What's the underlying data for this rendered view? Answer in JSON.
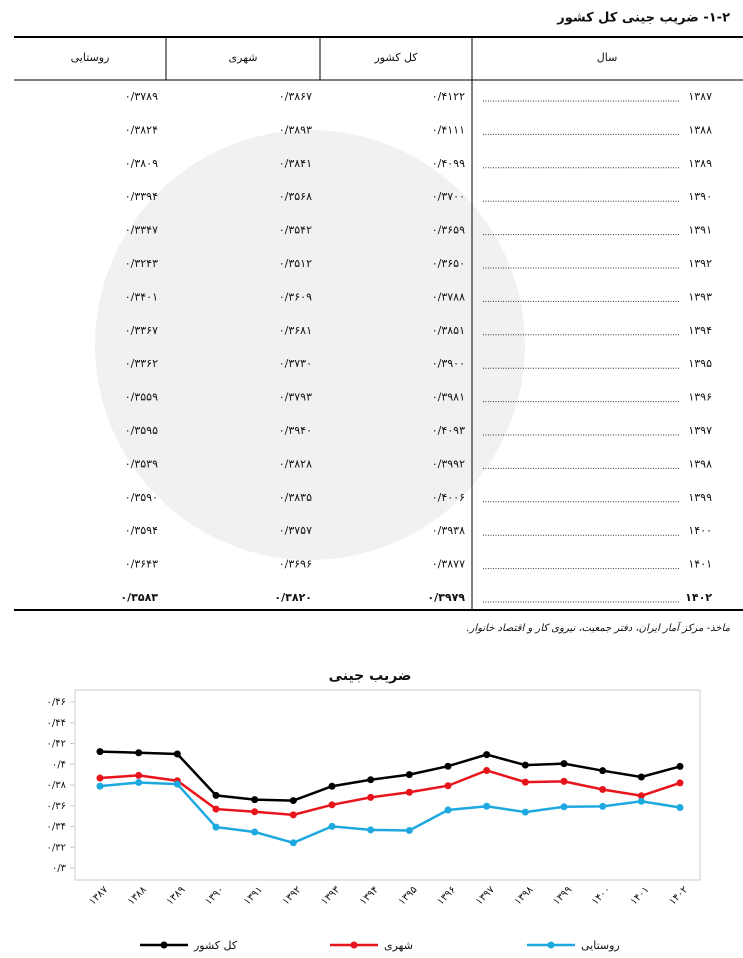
{
  "header": {
    "title": "۱-۲- ضریب جینی کل کشور"
  },
  "table": {
    "columns": [
      "سال",
      "کل کشور",
      "شهری",
      "روستایی"
    ],
    "rows": [
      [
        "۱۳۸۷",
        "۰/۴۱۲۲",
        "۰/۳۸۶۷",
        "۰/۳۷۸۹"
      ],
      [
        "۱۳۸۸",
        "۰/۴۱۱۱",
        "۰/۳۸۹۳",
        "۰/۳۸۲۴"
      ],
      [
        "۱۳۸۹",
        "۰/۴۰۹۹",
        "۰/۳۸۴۱",
        "۰/۳۸۰۹"
      ],
      [
        "۱۳۹۰",
        "۰/۳۷۰۰",
        "۰/۳۵۶۸",
        "۰/۳۳۹۴"
      ],
      [
        "۱۳۹۱",
        "۰/۳۶۵۹",
        "۰/۳۵۴۲",
        "۰/۳۳۴۷"
      ],
      [
        "۱۳۹۲",
        "۰/۳۶۵۰",
        "۰/۳۵۱۲",
        "۰/۳۲۴۳"
      ],
      [
        "۱۳۹۳",
        "۰/۳۷۸۸",
        "۰/۳۶۰۹",
        "۰/۳۴۰۱"
      ],
      [
        "۱۳۹۴",
        "۰/۳۸۵۱",
        "۰/۳۶۸۱",
        "۰/۳۳۶۷"
      ],
      [
        "۱۳۹۵",
        "۰/۳۹۰۰",
        "۰/۳۷۳۰",
        "۰/۳۳۶۲"
      ],
      [
        "۱۳۹۶",
        "۰/۳۹۸۱",
        "۰/۳۷۹۳",
        "۰/۳۵۵۹"
      ],
      [
        "۱۳۹۷",
        "۰/۴۰۹۳",
        "۰/۳۹۴۰",
        "۰/۳۵۹۵"
      ],
      [
        "۱۳۹۸",
        "۰/۳۹۹۲",
        "۰/۳۸۲۸",
        "۰/۳۵۳۹"
      ],
      [
        "۱۳۹۹",
        "۰/۴۰۰۶",
        "۰/۳۸۳۵",
        "۰/۳۵۹۰"
      ],
      [
        "۱۴۰۰",
        "۰/۳۹۳۸",
        "۰/۳۷۵۷",
        "۰/۳۵۹۴"
      ],
      [
        "۱۴۰۱",
        "۰/۳۸۷۷",
        "۰/۳۶۹۶",
        "۰/۳۶۴۳"
      ],
      [
        "۱۴۰۲",
        "۰/۳۹۷۹",
        "۰/۳۸۲۰",
        "۰/۳۵۸۳"
      ]
    ]
  },
  "source": "ماخذ- مرکز آمار ایران، دفتر جمعیت، نیروی کار و اقتصاد خانوار.",
  "chart_data": {
    "type": "line",
    "title": "ضریب جینی",
    "categories": [
      "۱۳۸۷",
      "۱۳۸۸",
      "۱۳۸۹",
      "۱۳۹۰",
      "۱۳۹۱",
      "۱۳۹۲",
      "۱۳۹۳",
      "۱۳۹۴",
      "۱۳۹۵",
      "۱۳۹۶",
      "۱۳۹۷",
      "۱۳۹۸",
      "۱۳۹۹",
      "۱۴۰۰",
      "۱۴۰۱",
      "۱۴۰۲"
    ],
    "series": [
      {
        "name": "کل کشور",
        "color": "#000000",
        "values": [
          0.4122,
          0.4111,
          0.4099,
          0.37,
          0.3659,
          0.365,
          0.3788,
          0.3851,
          0.39,
          0.3981,
          0.4093,
          0.3992,
          0.4006,
          0.3938,
          0.3877,
          0.3979
        ]
      },
      {
        "name": "شهری",
        "color": "#e8141b",
        "values": [
          0.3867,
          0.3893,
          0.3841,
          0.3568,
          0.3542,
          0.3512,
          0.3609,
          0.3681,
          0.373,
          0.3793,
          0.394,
          0.3828,
          0.3835,
          0.3757,
          0.3696,
          0.382
        ]
      },
      {
        "name": "روستایی",
        "color": "#1ea8e0",
        "values": [
          0.3789,
          0.3824,
          0.3809,
          0.3394,
          0.3347,
          0.3243,
          0.3401,
          0.3367,
          0.3362,
          0.3559,
          0.3595,
          0.3539,
          0.359,
          0.3594,
          0.3643,
          0.3583
        ]
      }
    ],
    "ylim": [
      0.3,
      0.46
    ],
    "yticks": [
      {
        "value": 0.3,
        "label": "۰/۳"
      },
      {
        "value": 0.32,
        "label": "۰/۳۲"
      },
      {
        "value": 0.34,
        "label": "۰/۳۴"
      },
      {
        "value": 0.36,
        "label": "۰/۳۶"
      },
      {
        "value": 0.38,
        "label": "۰/۳۸"
      },
      {
        "value": 0.4,
        "label": "۰/۴"
      },
      {
        "value": 0.42,
        "label": "۰/۴۲"
      },
      {
        "value": 0.44,
        "label": "۰/۴۴"
      },
      {
        "value": 0.46,
        "label": "۰/۴۶"
      }
    ],
    "legend": "bottom"
  }
}
